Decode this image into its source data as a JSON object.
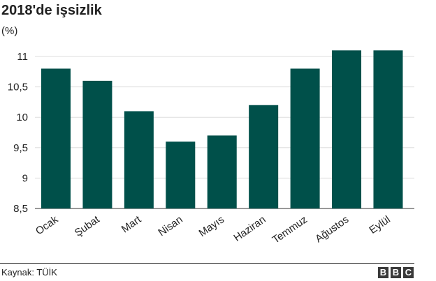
{
  "header": {
    "title": "2018'de işsizlik",
    "unit": "(%)"
  },
  "chart_data": {
    "type": "bar",
    "title": "2018'de işsizlik",
    "ylabel": "(%)",
    "xlabel": "",
    "categories": [
      "Ocak",
      "Şubat",
      "Mart",
      "Nisan",
      "Mayıs",
      "Haziran",
      "Temmuz",
      "Ağustos",
      "Eylül"
    ],
    "values": [
      10.8,
      10.6,
      10.1,
      9.6,
      9.7,
      10.2,
      10.8,
      11.1,
      11.1
    ],
    "ylim": [
      8.5,
      11
    ],
    "yticks": [
      8.5,
      9,
      9.5,
      10,
      10.5,
      11
    ],
    "ytick_labels": [
      "8,5",
      "9",
      "9,5",
      "10",
      "10,5",
      "11"
    ],
    "grid": true,
    "bar_color": "#00504a"
  },
  "footer": {
    "source": "Kaynak: TÜİK",
    "logo_letters": [
      "B",
      "B",
      "C"
    ]
  }
}
